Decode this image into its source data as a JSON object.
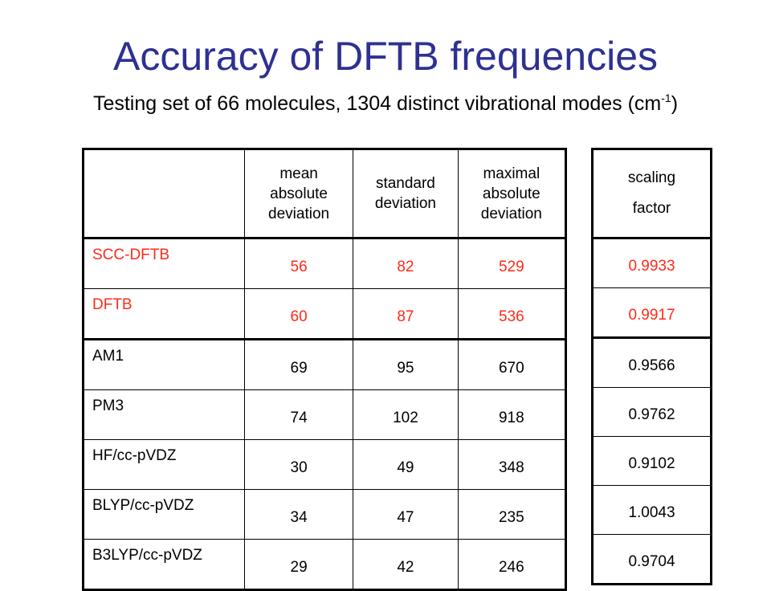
{
  "title": "Accuracy of DFTB frequencies",
  "subtitle": {
    "text": "Testing set of 66 molecules, 1304 distinct vibrational modes (cm",
    "superscript": "-1",
    "close": ")"
  },
  "colors": {
    "title": "#2e3192",
    "highlight": "#ff2a1a",
    "text": "#000000"
  },
  "main_table": {
    "headers": [
      "",
      "mean absolute deviation",
      "standard deviation",
      "maximal absolute deviation"
    ],
    "rows": [
      {
        "method": "SCC-DFTB",
        "mad": "56",
        "sd": "82",
        "max": "529",
        "highlight": true
      },
      {
        "method": "DFTB",
        "mad": "60",
        "sd": "87",
        "max": "536",
        "highlight": true
      },
      {
        "method": "AM1",
        "mad": "69",
        "sd": "95",
        "max": "670",
        "highlight": false
      },
      {
        "method": "PM3",
        "mad": "74",
        "sd": "102",
        "max": "918",
        "highlight": false
      },
      {
        "method": "HF/cc-pVDZ",
        "mad": "30",
        "sd": "49",
        "max": "348",
        "highlight": false
      },
      {
        "method": "BLYP/cc-pVDZ",
        "mad": "34",
        "sd": "47",
        "max": "235",
        "highlight": false
      },
      {
        "method": "B3LYP/cc-pVDZ",
        "mad": "29",
        "sd": "42",
        "max": "246",
        "highlight": false
      }
    ]
  },
  "scaling_table": {
    "header_line1": "scaling",
    "header_line2": "factor",
    "values": [
      "0.9933",
      "0.9917",
      "0.9566",
      "0.9762",
      "0.9102",
      "1.0043",
      "0.9704"
    ]
  }
}
